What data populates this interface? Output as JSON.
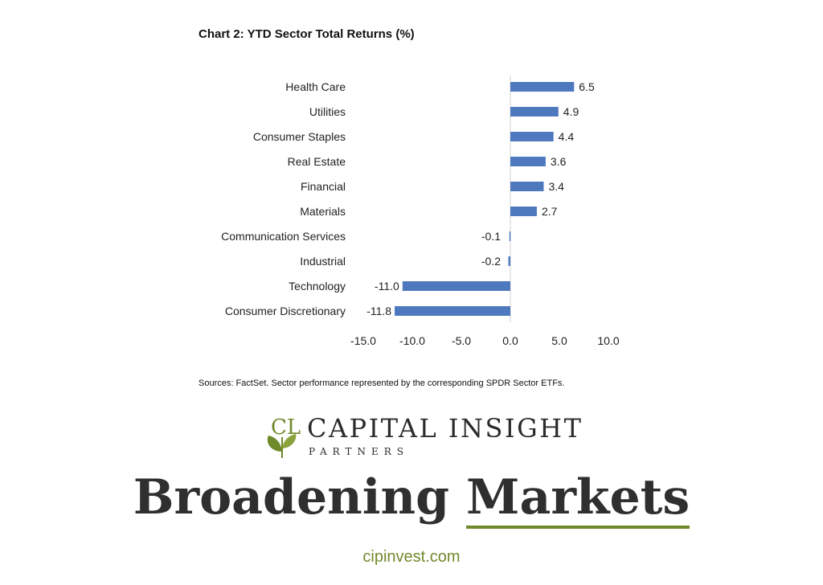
{
  "chart_data": {
    "type": "bar",
    "orientation": "horizontal",
    "title": "Chart 2:  YTD Sector Total Returns (%)",
    "categories": [
      "Health Care",
      "Utilities",
      "Consumer Staples",
      "Real Estate",
      "Financial",
      "Materials",
      "Communication Services",
      "Industrial",
      "Technology",
      "Consumer Discretionary"
    ],
    "values": [
      6.5,
      4.9,
      4.4,
      3.6,
      3.4,
      2.7,
      -0.1,
      -0.2,
      -11.0,
      -11.8
    ],
    "value_labels": [
      "6.5",
      "4.9",
      "4.4",
      "3.6",
      "3.4",
      "2.7",
      "-0.1",
      "-0.2",
      "-11.0",
      "-11.8"
    ],
    "xlim": [
      -15,
      10
    ],
    "xticks": [
      -15,
      -10,
      -5,
      0,
      5,
      10
    ],
    "xtick_labels": [
      "-15.0",
      "-10.0",
      "-5.0",
      "0.0",
      "5.0",
      "10.0"
    ],
    "bar_color": "#4e79bf",
    "grid": false,
    "legend": "none"
  },
  "source_note": "Sources: FactSet.  Sector performance represented by the corresponding SPDR Sector ETFs.",
  "brand": {
    "name": "CAPITAL INSIGHT",
    "sub": "PARTNERS",
    "logo_letters": "CL",
    "accent_color": "#6f8a2b"
  },
  "headline": {
    "word1": "Broadening",
    "word2": "Markets"
  },
  "website": "cipinvest.com"
}
